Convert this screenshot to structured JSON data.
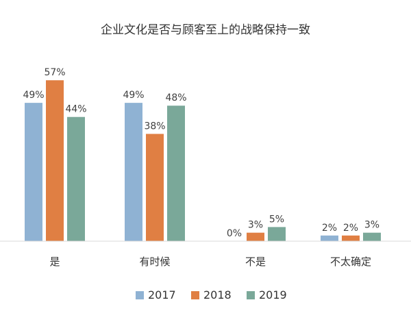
{
  "chart_data": {
    "type": "bar",
    "title": "企业文化是否与顾客至上的战略保持一致",
    "categories": [
      "是",
      "有时候",
      "不是",
      "不太确定"
    ],
    "series": [
      {
        "name": "2017",
        "color": "#8fb2d3",
        "values": [
          49,
          49,
          0,
          2
        ],
        "labels": [
          "49%",
          "49%",
          "0%",
          "2%"
        ]
      },
      {
        "name": "2018",
        "color": "#e07f43",
        "values": [
          57,
          38,
          3,
          2
        ],
        "labels": [
          "57%",
          "38%",
          "3%",
          "2%"
        ]
      },
      {
        "name": "2019",
        "color": "#7aa899",
        "values": [
          44,
          48,
          5,
          3
        ],
        "labels": [
          "44%",
          "48%",
          "5%",
          "3%"
        ]
      }
    ],
    "ylim": [
      0,
      60
    ],
    "grid": false,
    "legend_position": "bottom"
  }
}
